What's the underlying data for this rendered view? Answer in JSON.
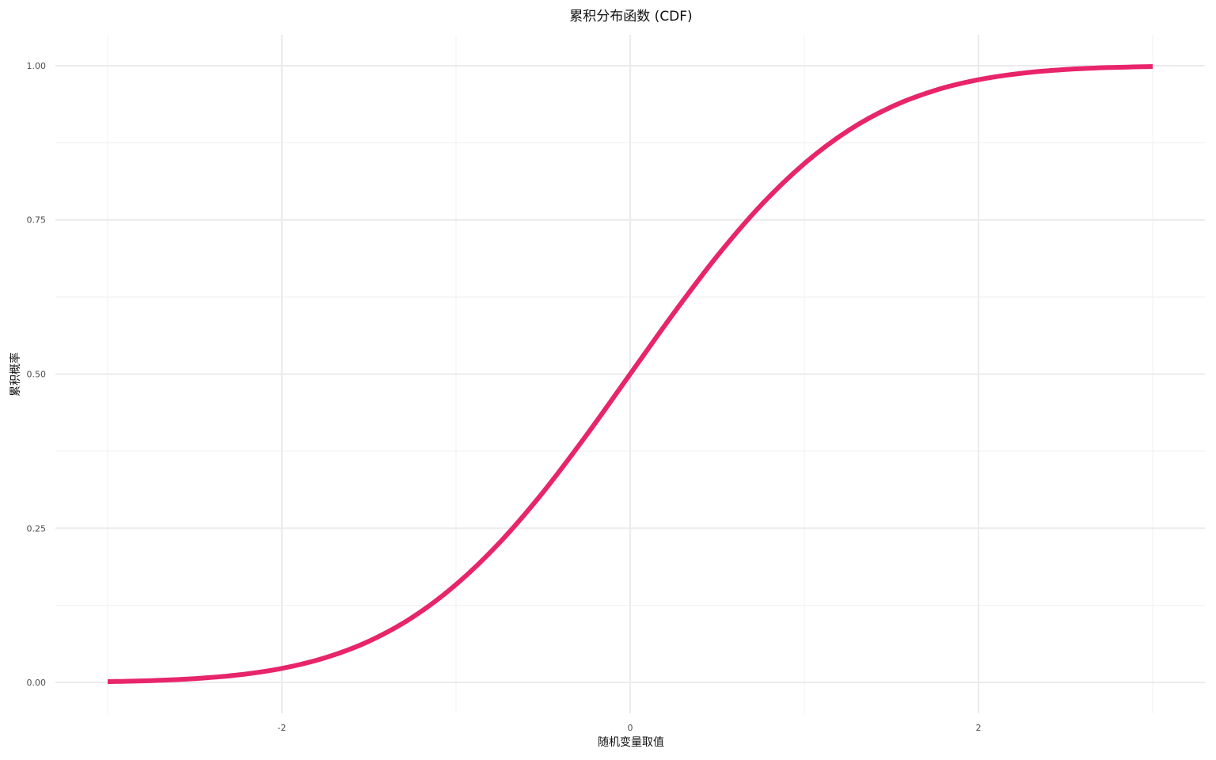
{
  "chart_data": {
    "type": "line",
    "title": "累积分布函数 (CDF)",
    "xlabel": "随机变量取值",
    "ylabel": "累积概率",
    "xlim": [
      -3.3,
      3.3
    ],
    "ylim": [
      -0.05,
      1.05
    ],
    "x_ticks": [
      {
        "value": -2,
        "label": "-2"
      },
      {
        "value": 0,
        "label": "0"
      },
      {
        "value": 2,
        "label": "2"
      }
    ],
    "y_ticks": [
      {
        "value": 0.0,
        "label": "0.00"
      },
      {
        "value": 0.25,
        "label": "0.25"
      },
      {
        "value": 0.5,
        "label": "0.50"
      },
      {
        "value": 0.75,
        "label": "0.75"
      },
      {
        "value": 1.0,
        "label": "1.00"
      }
    ],
    "x_minor": [
      -3,
      -1,
      1,
      3
    ],
    "y_minor": [
      0.125,
      0.375,
      0.625,
      0.875
    ],
    "grid": true,
    "legend": "none",
    "series": [
      {
        "color": "#e8246a",
        "x": [
          -3.0,
          -2.75,
          -2.5,
          -2.25,
          -2.0,
          -1.75,
          -1.5,
          -1.25,
          -1.0,
          -0.75,
          -0.5,
          -0.25,
          0.0,
          0.25,
          0.5,
          0.75,
          1.0,
          1.25,
          1.5,
          1.75,
          2.0,
          2.25,
          2.5,
          2.75,
          3.0
        ],
        "y": [
          0.0013,
          0.003,
          0.0062,
          0.0122,
          0.0228,
          0.0401,
          0.0668,
          0.1056,
          0.1587,
          0.2266,
          0.3085,
          0.4013,
          0.5,
          0.5987,
          0.6915,
          0.7734,
          0.8413,
          0.8944,
          0.9332,
          0.9599,
          0.9772,
          0.9878,
          0.9938,
          0.997,
          0.9987
        ]
      }
    ]
  }
}
